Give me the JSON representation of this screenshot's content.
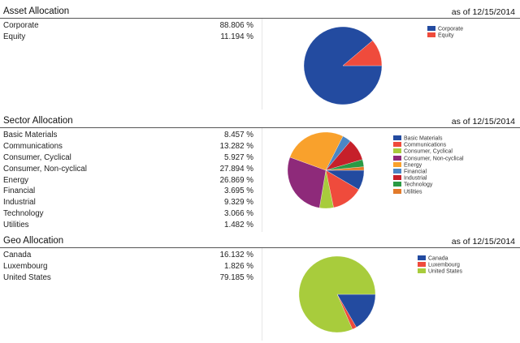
{
  "sections": [
    {
      "id": "asset",
      "title": "Asset Allocation",
      "date": "as of 12/15/2014",
      "rows": [
        {
          "label": "Corporate",
          "value": "88.806 %"
        },
        {
          "label": "Equity",
          "value": "11.194 %"
        }
      ]
    },
    {
      "id": "sector",
      "title": "Sector Allocation",
      "date": "as of 12/15/2014",
      "rows": [
        {
          "label": "Basic Materials",
          "value": "8.457 %"
        },
        {
          "label": "Communications",
          "value": "13.282 %"
        },
        {
          "label": "Consumer, Cyclical",
          "value": "5.927 %"
        },
        {
          "label": "Consumer, Non-cyclical",
          "value": "27.894 %"
        },
        {
          "label": "Energy",
          "value": "26.869 %"
        },
        {
          "label": "Financial",
          "value": "3.695 %"
        },
        {
          "label": "Industrial",
          "value": "9.329 %"
        },
        {
          "label": "Technology",
          "value": "3.066 %"
        },
        {
          "label": "Utilities",
          "value": "1.482 %"
        }
      ]
    },
    {
      "id": "geo",
      "title": "Geo Allocation",
      "date": "as of 12/15/2014",
      "rows": [
        {
          "label": "Canada",
          "value": "16.132 %"
        },
        {
          "label": "Luxembourg",
          "value": "1.826 %"
        },
        {
          "label": "United States",
          "value": "79.185 %"
        }
      ]
    }
  ],
  "chart_data": [
    {
      "type": "pie",
      "legend_position": "right",
      "labels": [
        "Corporate",
        "Equity"
      ],
      "values": [
        88.806,
        11.194
      ],
      "colors": [
        "#234ba0",
        "#ef4b3c"
      ]
    },
    {
      "type": "pie",
      "legend_position": "right",
      "labels": [
        "Basic Materials",
        "Communications",
        "Consumer, Cyclical",
        "Consumer, Non-cyclical",
        "Energy",
        "Financial",
        "Industrial",
        "Technology",
        "Utilities"
      ],
      "values": [
        8.457,
        13.282,
        5.927,
        27.894,
        26.869,
        3.695,
        9.329,
        3.066,
        1.482
      ],
      "colors": [
        "#234ba0",
        "#ef4b3c",
        "#a8cc3c",
        "#8e2a7a",
        "#f9a12c",
        "#4a86c5",
        "#c6202a",
        "#2a9a44",
        "#e27a2a"
      ]
    },
    {
      "type": "pie",
      "legend_position": "right",
      "labels": [
        "Canada",
        "Luxembourg",
        "United States"
      ],
      "values": [
        16.132,
        1.826,
        79.185
      ],
      "colors": [
        "#234ba0",
        "#ef4b3c",
        "#a8cc3c"
      ]
    }
  ]
}
